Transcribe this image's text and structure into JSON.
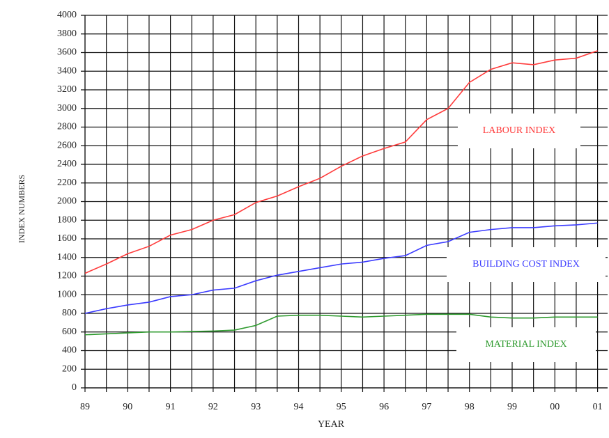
{
  "chart_data": {
    "type": "line",
    "x_label": "YEAR",
    "y_label": "INDEX NUMBERS",
    "categories": [
      "89",
      null,
      "90",
      null,
      "91",
      null,
      "92",
      null,
      "93",
      null,
      "94",
      null,
      "95",
      null,
      "96",
      null,
      "97",
      null,
      "98",
      null,
      "99",
      null,
      "00",
      null,
      "01"
    ],
    "ylim": [
      0,
      4000
    ],
    "yticks": [
      0,
      200,
      400,
      600,
      800,
      1000,
      1200,
      1400,
      1600,
      1800,
      2000,
      2200,
      2400,
      2600,
      2800,
      3000,
      3200,
      3400,
      3600,
      3800,
      4000
    ],
    "grid": true,
    "series": [
      {
        "name": "LABOUR INDEX",
        "color": "#ff3b3b",
        "values": [
          1230,
          1330,
          1440,
          1520,
          1640,
          1700,
          1800,
          1860,
          1990,
          2060,
          2160,
          2250,
          2380,
          2490,
          2570,
          2640,
          2880,
          3000,
          3280,
          3420,
          3490,
          3470,
          3520,
          3540,
          3620
        ]
      },
      {
        "name": "BUILDING COST INDEX",
        "color": "#3b3bff",
        "values": [
          800,
          850,
          890,
          920,
          980,
          1000,
          1050,
          1070,
          1150,
          1210,
          1250,
          1290,
          1330,
          1350,
          1390,
          1420,
          1530,
          1570,
          1670,
          1700,
          1720,
          1720,
          1740,
          1750,
          1770
        ]
      },
      {
        "name": "MATERIAL INDEX",
        "color": "#2e9a2e",
        "values": [
          570,
          580,
          590,
          600,
          600,
          605,
          610,
          620,
          670,
          770,
          780,
          780,
          770,
          760,
          770,
          780,
          790,
          790,
          790,
          760,
          750,
          750,
          760,
          760,
          760
        ]
      }
    ]
  }
}
